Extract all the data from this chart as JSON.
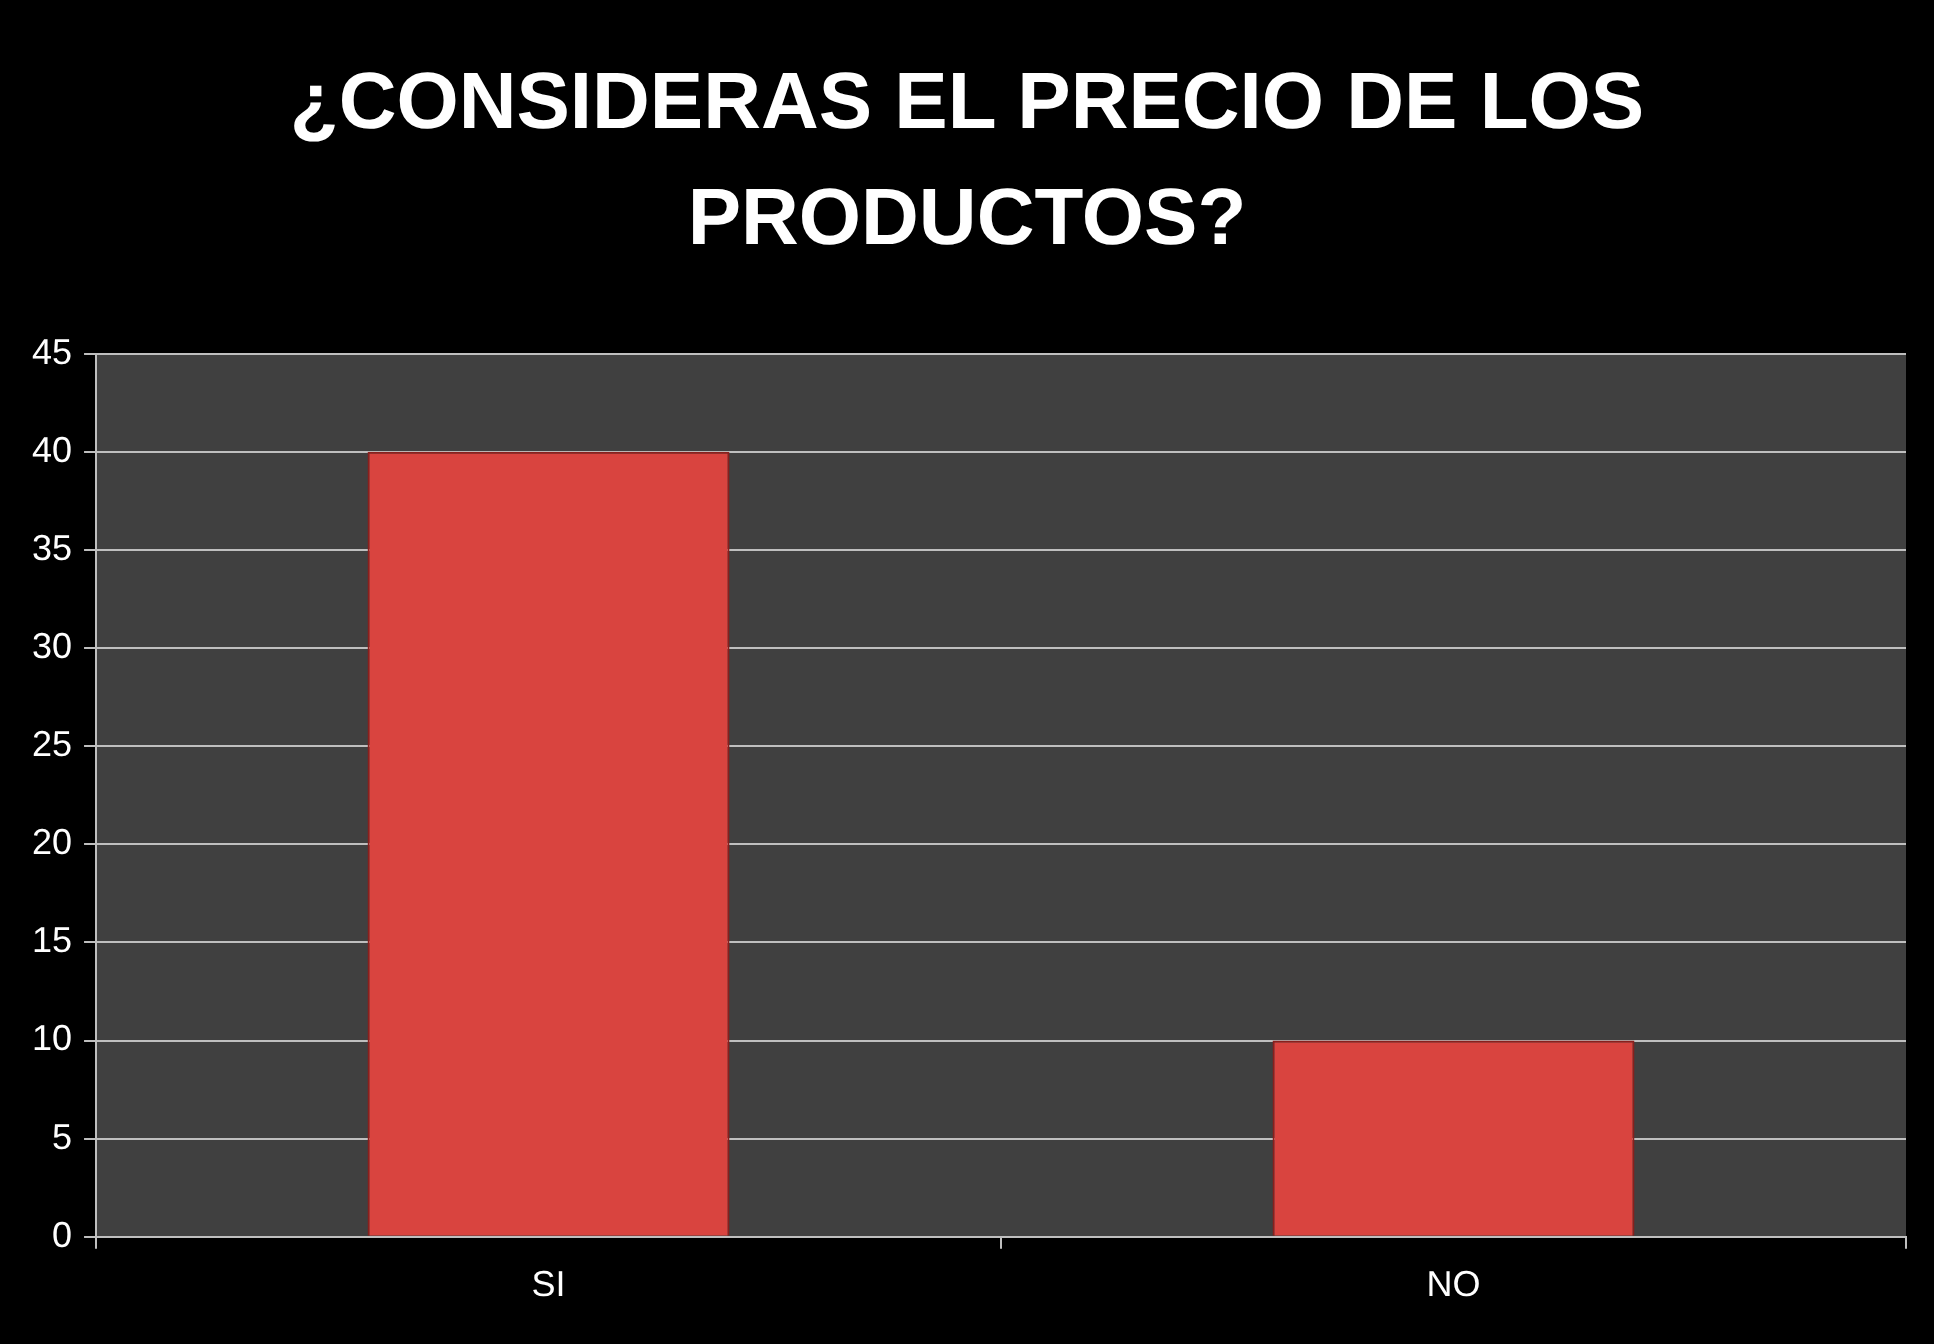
{
  "chart_data": {
    "type": "bar",
    "title": "¿CONSIDERAS EL PRECIO DE LOS PRODUCTOS?",
    "categories": [
      "SI",
      "NO"
    ],
    "values": [
      40,
      10
    ],
    "color": "#d9443f",
    "ylim": [
      0,
      45
    ],
    "yticks": [
      0,
      5,
      10,
      15,
      20,
      25,
      30,
      35,
      40,
      45
    ],
    "grid": "y"
  }
}
